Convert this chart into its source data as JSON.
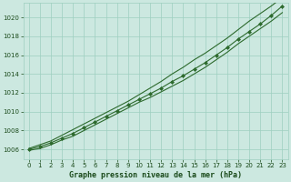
{
  "x": [
    0,
    1,
    2,
    3,
    4,
    5,
    6,
    7,
    8,
    9,
    10,
    11,
    12,
    13,
    14,
    15,
    16,
    17,
    18,
    19,
    20,
    21,
    22,
    23
  ],
  "y_main": [
    1006.0,
    1006.3,
    1006.7,
    1007.2,
    1007.7,
    1008.3,
    1008.9,
    1009.5,
    1010.1,
    1010.7,
    1011.3,
    1011.9,
    1012.5,
    1013.2,
    1013.8,
    1014.5,
    1015.2,
    1016.0,
    1016.8,
    1017.7,
    1018.5,
    1019.3,
    1020.2,
    1021.2
  ],
  "y_upper": [
    1006.1,
    1006.5,
    1006.9,
    1007.5,
    1008.1,
    1008.7,
    1009.3,
    1009.9,
    1010.5,
    1011.1,
    1011.8,
    1012.5,
    1013.2,
    1014.0,
    1014.7,
    1015.5,
    1016.2,
    1017.0,
    1017.8,
    1018.7,
    1019.6,
    1020.4,
    1021.2,
    1022.1
  ],
  "y_lower": [
    1005.9,
    1006.1,
    1006.5,
    1007.0,
    1007.4,
    1008.0,
    1008.6,
    1009.2,
    1009.8,
    1010.4,
    1011.0,
    1011.5,
    1012.1,
    1012.7,
    1013.3,
    1014.0,
    1014.7,
    1015.5,
    1016.3,
    1017.2,
    1018.0,
    1018.8,
    1019.6,
    1020.5
  ],
  "line_color": "#2d6a2d",
  "bg_color": "#cce8e0",
  "grid_color": "#9ecfbf",
  "title": "Graphe pression niveau de la mer (hPa)",
  "title_color": "#1a4a1a",
  "xlim": [
    -0.5,
    23.5
  ],
  "ylim": [
    1005.0,
    1021.5
  ],
  "yticks": [
    1006,
    1008,
    1010,
    1012,
    1014,
    1016,
    1018,
    1020
  ],
  "xticks": [
    0,
    1,
    2,
    3,
    4,
    5,
    6,
    7,
    8,
    9,
    10,
    11,
    12,
    13,
    14,
    15,
    16,
    17,
    18,
    19,
    20,
    21,
    22,
    23
  ],
  "tick_fontsize": 5.0,
  "xlabel_fontsize": 6.0
}
